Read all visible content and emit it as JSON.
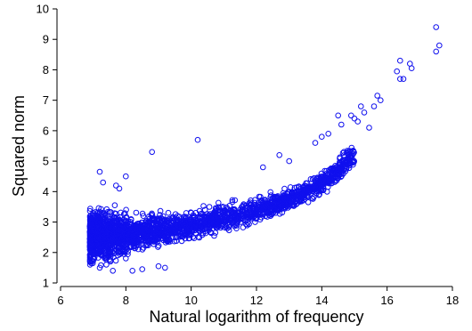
{
  "chart_data": {
    "type": "scatter",
    "title": "",
    "xlabel": "Natural logarithm of frequency",
    "ylabel": "Squared norm",
    "xlim": [
      6,
      18
    ],
    "ylim": [
      1,
      10
    ],
    "xticks": [
      6,
      8,
      10,
      12,
      14,
      16,
      18
    ],
    "yticks": [
      1,
      2,
      3,
      4,
      5,
      6,
      7,
      8,
      9,
      10
    ],
    "grid": false,
    "marker": "open-circle",
    "color": "#1010ee",
    "trend_series": {
      "x": [
        6.9,
        7.5,
        8.0,
        8.5,
        9.0,
        9.5,
        10.0,
        10.5,
        11.0,
        11.5,
        12.0,
        12.5,
        13.0,
        13.5,
        14.0,
        14.5,
        15.0
      ],
      "y_center": [
        2.5,
        2.55,
        2.6,
        2.65,
        2.72,
        2.8,
        2.9,
        3.0,
        3.12,
        3.25,
        3.4,
        3.55,
        3.75,
        4.0,
        4.3,
        4.7,
        5.2
      ],
      "y_spread": [
        0.75,
        0.7,
        0.6,
        0.5,
        0.45,
        0.42,
        0.4,
        0.4,
        0.38,
        0.36,
        0.35,
        0.33,
        0.32,
        0.32,
        0.33,
        0.35,
        0.4
      ]
    },
    "points": [
      {
        "x": 17.5,
        "y": 9.4
      },
      {
        "x": 17.6,
        "y": 8.8
      },
      {
        "x": 17.5,
        "y": 8.6
      },
      {
        "x": 16.7,
        "y": 8.2
      },
      {
        "x": 16.75,
        "y": 8.05
      },
      {
        "x": 16.4,
        "y": 8.3
      },
      {
        "x": 16.3,
        "y": 7.95
      },
      {
        "x": 16.5,
        "y": 7.7
      },
      {
        "x": 16.4,
        "y": 7.7
      },
      {
        "x": 15.7,
        "y": 7.15
      },
      {
        "x": 15.8,
        "y": 7.0
      },
      {
        "x": 15.6,
        "y": 6.8
      },
      {
        "x": 15.2,
        "y": 6.8
      },
      {
        "x": 15.3,
        "y": 6.6
      },
      {
        "x": 15.0,
        "y": 6.4
      },
      {
        "x": 14.9,
        "y": 6.5
      },
      {
        "x": 15.1,
        "y": 6.3
      },
      {
        "x": 14.5,
        "y": 6.5
      },
      {
        "x": 14.6,
        "y": 6.2
      },
      {
        "x": 15.45,
        "y": 6.1
      },
      {
        "x": 10.2,
        "y": 5.7
      },
      {
        "x": 8.8,
        "y": 5.3
      },
      {
        "x": 8.0,
        "y": 4.5
      },
      {
        "x": 7.2,
        "y": 4.65
      },
      {
        "x": 7.3,
        "y": 4.3
      },
      {
        "x": 7.7,
        "y": 4.2
      },
      {
        "x": 7.8,
        "y": 4.1
      },
      {
        "x": 12.7,
        "y": 5.2
      },
      {
        "x": 13.0,
        "y": 5.0
      },
      {
        "x": 12.2,
        "y": 4.8
      },
      {
        "x": 13.8,
        "y": 5.6
      },
      {
        "x": 14.2,
        "y": 5.9
      },
      {
        "x": 14.0,
        "y": 5.8
      },
      {
        "x": 9.2,
        "y": 1.5
      },
      {
        "x": 9.0,
        "y": 1.55
      },
      {
        "x": 8.2,
        "y": 1.4
      },
      {
        "x": 7.6,
        "y": 1.4
      },
      {
        "x": 8.5,
        "y": 1.45
      },
      {
        "x": 7.2,
        "y": 1.5
      }
    ]
  }
}
